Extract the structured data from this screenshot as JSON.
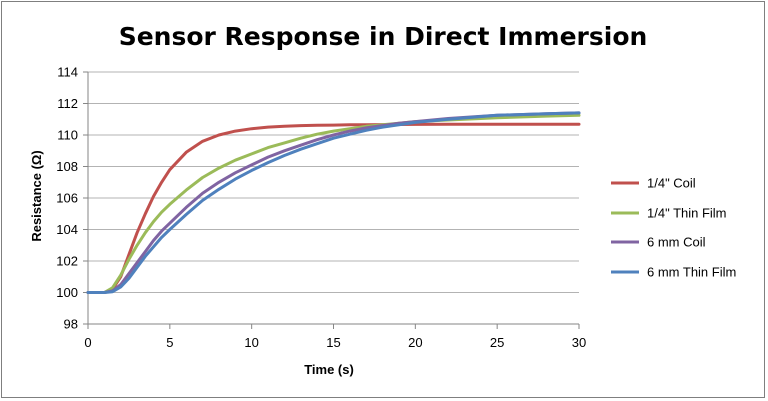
{
  "chart_data": {
    "type": "line",
    "title": "Sensor Response in Direct Immersion",
    "xlabel": "Time (s)",
    "ylabel": "Resistance (Ω)",
    "xlim": [
      0,
      30
    ],
    "ylim": [
      98,
      114
    ],
    "xticks": [
      0,
      5,
      10,
      15,
      20,
      25,
      30
    ],
    "yticks": [
      98,
      100,
      102,
      104,
      106,
      108,
      110,
      112,
      114
    ],
    "grid": "horizontal",
    "legend": "right",
    "series": [
      {
        "name": "1/4\" Coil",
        "color": "#c0504d",
        "x": [
          0,
          1,
          1.5,
          2,
          2.5,
          3,
          3.5,
          4,
          4.5,
          5,
          6,
          7,
          8,
          9,
          10,
          11,
          12,
          13,
          14,
          15,
          16,
          17,
          18,
          20,
          22,
          25,
          28,
          30
        ],
        "y": [
          100,
          100,
          100.2,
          101,
          102.4,
          103.8,
          105,
          106.1,
          107,
          107.8,
          108.9,
          109.6,
          110,
          110.25,
          110.4,
          110.5,
          110.55,
          110.6,
          110.62,
          110.63,
          110.65,
          110.65,
          110.66,
          110.67,
          110.68,
          110.68,
          110.68,
          110.68
        ]
      },
      {
        "name": "1/4\" Thin Film",
        "color": "#9bbb59",
        "x": [
          0,
          1,
          1.5,
          2,
          2.5,
          3,
          3.5,
          4,
          4.5,
          5,
          6,
          7,
          8,
          9,
          10,
          11,
          12,
          13,
          14,
          15,
          16,
          17,
          18,
          19,
          20,
          22,
          25,
          28,
          30
        ],
        "y": [
          100,
          100,
          100.3,
          101.1,
          102.1,
          103,
          103.8,
          104.5,
          105.1,
          105.6,
          106.5,
          107.3,
          107.9,
          108.4,
          108.8,
          109.2,
          109.5,
          109.8,
          110.05,
          110.25,
          110.4,
          110.55,
          110.65,
          110.75,
          110.85,
          110.95,
          111.1,
          111.2,
          111.25
        ]
      },
      {
        "name": "6 mm Coil",
        "color": "#8064a2",
        "x": [
          0,
          1,
          1.5,
          2,
          2.5,
          3,
          3.5,
          4,
          4.5,
          5,
          6,
          7,
          8,
          9,
          10,
          11,
          12,
          13,
          14,
          15,
          16,
          17,
          18,
          19,
          20,
          22,
          25,
          28,
          30
        ],
        "y": [
          100,
          100,
          100.1,
          100.5,
          101.2,
          101.9,
          102.6,
          103.3,
          103.9,
          104.4,
          105.4,
          106.3,
          107,
          107.6,
          108.1,
          108.6,
          109,
          109.35,
          109.7,
          110,
          110.25,
          110.45,
          110.6,
          110.75,
          110.85,
          111.05,
          111.25,
          111.35,
          111.4
        ]
      },
      {
        "name": "6 mm Thin Film",
        "color": "#4f81bd",
        "x": [
          0,
          1,
          1.5,
          2,
          2.5,
          3,
          3.5,
          4,
          4.5,
          5,
          6,
          7,
          8,
          9,
          10,
          11,
          12,
          13,
          14,
          15,
          16,
          17,
          18,
          19,
          20,
          22,
          25,
          28,
          30
        ],
        "y": [
          100,
          100,
          100.05,
          100.35,
          100.9,
          101.6,
          102.3,
          102.9,
          103.5,
          104,
          104.95,
          105.85,
          106.55,
          107.2,
          107.75,
          108.25,
          108.7,
          109.1,
          109.45,
          109.8,
          110.05,
          110.3,
          110.5,
          110.65,
          110.8,
          111,
          111.25,
          111.35,
          111.4
        ]
      }
    ]
  }
}
